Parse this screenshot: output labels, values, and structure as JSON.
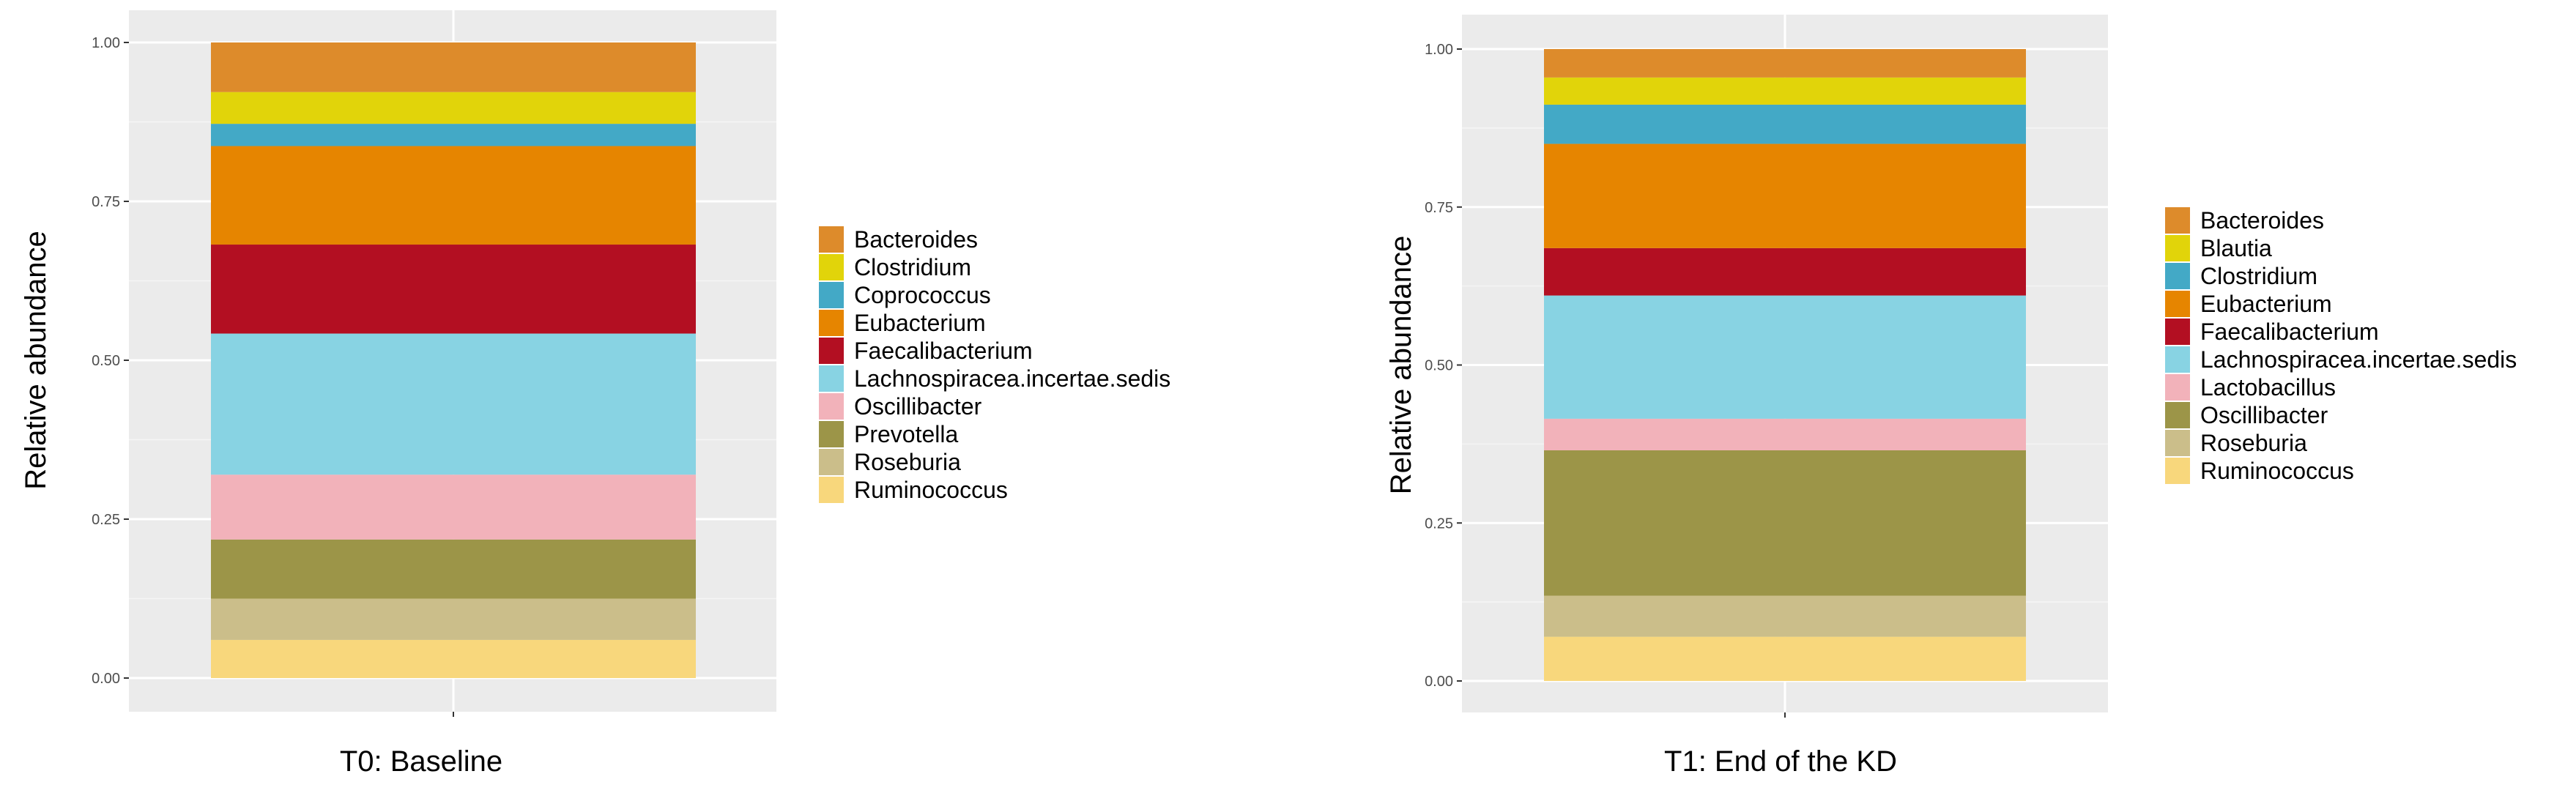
{
  "chart_data": [
    {
      "type": "bar",
      "stacked": true,
      "title": "T0: Baseline",
      "xlabel": "",
      "ylabel": "Relative abundance",
      "ylim": [
        0,
        1
      ],
      "yticks": [
        "0.00",
        "0.25",
        "0.50",
        "0.75",
        "1.00"
      ],
      "categories": [
        ""
      ],
      "legend_position": "right",
      "series": [
        {
          "name": "Ruminococcus",
          "values": [
            0.06
          ],
          "color": "#F8D77C"
        },
        {
          "name": "Roseburia",
          "values": [
            0.065
          ],
          "color": "#CBBE8A"
        },
        {
          "name": "Prevotella",
          "values": [
            0.093
          ],
          "color": "#9C9548"
        },
        {
          "name": "Oscillibacter",
          "values": [
            0.102
          ],
          "color": "#F2B2BA"
        },
        {
          "name": "Lachnospiracea.incertae.sedis",
          "values": [
            0.222
          ],
          "color": "#88D3E3"
        },
        {
          "name": "Faecalibacterium",
          "values": [
            0.14
          ],
          "color": "#B30F22"
        },
        {
          "name": "Eubacterium",
          "values": [
            0.155
          ],
          "color": "#E68500"
        },
        {
          "name": "Coprococcus",
          "values": [
            0.035
          ],
          "color": "#43A9C6"
        },
        {
          "name": "Clostridium",
          "values": [
            0.05
          ],
          "color": "#E1D40A"
        },
        {
          "name": "Bacteroides",
          "values": [
            0.078
          ],
          "color": "#DD8B2B"
        }
      ],
      "legend_order": [
        "Bacteroides",
        "Clostridium",
        "Coprococcus",
        "Eubacterium",
        "Faecalibacterium",
        "Lachnospiracea.incertae.sedis",
        "Oscillibacter",
        "Prevotella",
        "Roseburia",
        "Ruminococcus"
      ]
    },
    {
      "type": "bar",
      "stacked": true,
      "title": "T1: End of the KD",
      "xlabel": "",
      "ylabel": "Relative abundance",
      "ylim": [
        0,
        1
      ],
      "yticks": [
        "0.00",
        "0.25",
        "0.50",
        "0.75",
        "1.00"
      ],
      "categories": [
        ""
      ],
      "legend_position": "right",
      "series": [
        {
          "name": "Ruminococcus",
          "values": [
            0.07
          ],
          "color": "#F8D77C"
        },
        {
          "name": "Roseburia",
          "values": [
            0.065
          ],
          "color": "#CBBE8A"
        },
        {
          "name": "Oscillibacter",
          "values": [
            0.23
          ],
          "color": "#9C9548"
        },
        {
          "name": "Lactobacillus",
          "values": [
            0.05
          ],
          "color": "#F2B2BA"
        },
        {
          "name": "Lachnospiracea.incertae.sedis",
          "values": [
            0.195
          ],
          "color": "#88D3E3"
        },
        {
          "name": "Faecalibacterium",
          "values": [
            0.075
          ],
          "color": "#B30F22"
        },
        {
          "name": "Eubacterium",
          "values": [
            0.165
          ],
          "color": "#E68500"
        },
        {
          "name": "Clostridium",
          "values": [
            0.062
          ],
          "color": "#43A9C6"
        },
        {
          "name": "Blautia",
          "values": [
            0.043
          ],
          "color": "#E1D40A"
        },
        {
          "name": "Bacteroides",
          "values": [
            0.045
          ],
          "color": "#DD8B2B"
        }
      ],
      "legend_order": [
        "Bacteroides",
        "Blautia",
        "Clostridium",
        "Eubacterium",
        "Faecalibacterium",
        "Lachnospiracea.incertae.sedis",
        "Lactobacillus",
        "Oscillibacter",
        "Roseburia",
        "Ruminococcus"
      ]
    }
  ]
}
